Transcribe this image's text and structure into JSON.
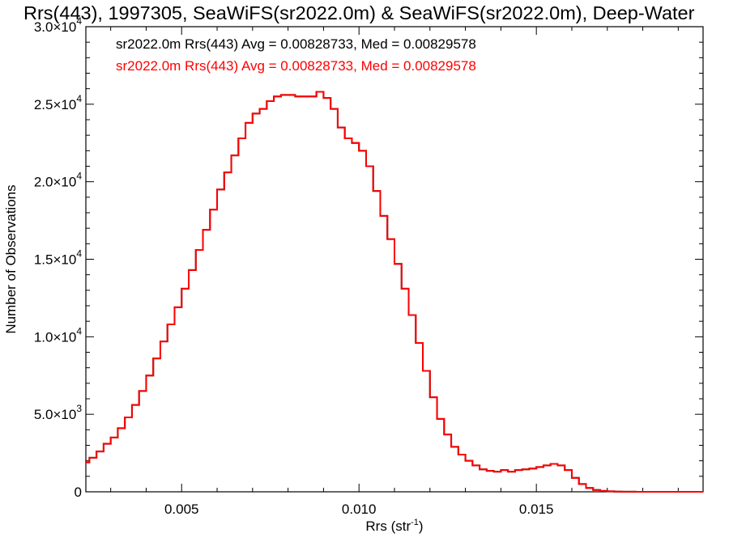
{
  "chart_data": {
    "type": "line",
    "title": "Rrs(443), 1997305, SeaWiFS(sr2022.0m) & SeaWiFS(sr2022.0m), Deep-Water",
    "xlabel": "Rrs (str",
    "xlabel_sup": "-1",
    "xlabel_close": ")",
    "ylabel": "Number of Observations",
    "xlim": [
      0.0023,
      0.0197
    ],
    "ylim": [
      0,
      30000
    ],
    "xticks": [
      {
        "value": 0.005,
        "label": "0.005"
      },
      {
        "value": 0.01,
        "label": "0.010"
      },
      {
        "value": 0.015,
        "label": "0.015"
      }
    ],
    "yticks": [
      {
        "value": 0,
        "mant": "0",
        "exp": ""
      },
      {
        "value": 5000,
        "mant": "5.0×10",
        "exp": "3"
      },
      {
        "value": 10000,
        "mant": "1.0×10",
        "exp": "4"
      },
      {
        "value": 15000,
        "mant": "1.5×10",
        "exp": "4"
      },
      {
        "value": 20000,
        "mant": "2.0×10",
        "exp": "4"
      },
      {
        "value": 25000,
        "mant": "2.5×10",
        "exp": "4"
      },
      {
        "value": 30000,
        "mant": "3.0×10",
        "exp": "4"
      }
    ],
    "grid": false,
    "legend_position": "top-left",
    "series": [
      {
        "name": "sr2022.0m Rrs(443) Avg = 0.00828733, Med = 0.00829578",
        "color": "#000000",
        "x": [
          0.0023,
          0.0025,
          0.0027,
          0.0029,
          0.0031,
          0.0033,
          0.0035,
          0.0037,
          0.0039,
          0.0041,
          0.0043,
          0.0045,
          0.0047,
          0.0049,
          0.0051,
          0.0053,
          0.0055,
          0.0057,
          0.0059,
          0.0061,
          0.0063,
          0.0065,
          0.0067,
          0.0069,
          0.0071,
          0.0073,
          0.0075,
          0.0077,
          0.0079,
          0.0081,
          0.0083,
          0.0085,
          0.0087,
          0.0089,
          0.0091,
          0.0093,
          0.0095,
          0.0097,
          0.0099,
          0.0101,
          0.0103,
          0.0105,
          0.0107,
          0.0109,
          0.0111,
          0.0113,
          0.0115,
          0.0117,
          0.0119,
          0.0121,
          0.0123,
          0.0125,
          0.0127,
          0.0129,
          0.0131,
          0.0133,
          0.0135,
          0.0137,
          0.0139,
          0.0141,
          0.0143,
          0.0145,
          0.0147,
          0.0149,
          0.0151,
          0.0153,
          0.0155,
          0.0157,
          0.0159,
          0.0161,
          0.0163,
          0.0165,
          0.0167,
          0.0169,
          0.0171,
          0.0173,
          0.0175,
          0.0177,
          0.0179,
          0.0181,
          0.0183,
          0.0185,
          0.0187,
          0.0189,
          0.0191,
          0.0193,
          0.0195,
          0.0197
        ],
        "values": [
          1900,
          2200,
          2600,
          3100,
          3500,
          4100,
          4800,
          5600,
          6500,
          7500,
          8600,
          9700,
          10800,
          11900,
          13100,
          14300,
          15600,
          16900,
          18200,
          19500,
          20600,
          21700,
          22800,
          23800,
          24400,
          24700,
          25200,
          25500,
          25600,
          25600,
          25500,
          25500,
          25500,
          25800,
          25400,
          24700,
          23500,
          22800,
          22500,
          22000,
          21000,
          19400,
          17800,
          16300,
          14700,
          13100,
          11400,
          9600,
          7800,
          6100,
          4700,
          3700,
          2900,
          2400,
          2000,
          1700,
          1450,
          1350,
          1300,
          1400,
          1300,
          1400,
          1450,
          1500,
          1600,
          1700,
          1800,
          1700,
          1400,
          900,
          500,
          250,
          120,
          60,
          30,
          15,
          8,
          5,
          3,
          2,
          1,
          1,
          1,
          1,
          1,
          1,
          1,
          1
        ]
      },
      {
        "name": "sr2022.0m Rrs(443) Avg = 0.00828733, Med = 0.00829578",
        "color": "#ff0000",
        "x": [
          0.0023,
          0.0025,
          0.0027,
          0.0029,
          0.0031,
          0.0033,
          0.0035,
          0.0037,
          0.0039,
          0.0041,
          0.0043,
          0.0045,
          0.0047,
          0.0049,
          0.0051,
          0.0053,
          0.0055,
          0.0057,
          0.0059,
          0.0061,
          0.0063,
          0.0065,
          0.0067,
          0.0069,
          0.0071,
          0.0073,
          0.0075,
          0.0077,
          0.0079,
          0.0081,
          0.0083,
          0.0085,
          0.0087,
          0.0089,
          0.0091,
          0.0093,
          0.0095,
          0.0097,
          0.0099,
          0.0101,
          0.0103,
          0.0105,
          0.0107,
          0.0109,
          0.0111,
          0.0113,
          0.0115,
          0.0117,
          0.0119,
          0.0121,
          0.0123,
          0.0125,
          0.0127,
          0.0129,
          0.0131,
          0.0133,
          0.0135,
          0.0137,
          0.0139,
          0.0141,
          0.0143,
          0.0145,
          0.0147,
          0.0149,
          0.0151,
          0.0153,
          0.0155,
          0.0157,
          0.0159,
          0.0161,
          0.0163,
          0.0165,
          0.0167,
          0.0169,
          0.0171,
          0.0173,
          0.0175,
          0.0177,
          0.0179,
          0.0181,
          0.0183,
          0.0185,
          0.0187,
          0.0189,
          0.0191,
          0.0193,
          0.0195,
          0.0197
        ],
        "values": [
          1900,
          2200,
          2600,
          3100,
          3500,
          4100,
          4800,
          5600,
          6500,
          7500,
          8600,
          9700,
          10800,
          11900,
          13100,
          14300,
          15600,
          16900,
          18200,
          19500,
          20600,
          21700,
          22800,
          23800,
          24400,
          24700,
          25200,
          25500,
          25600,
          25600,
          25500,
          25500,
          25500,
          25800,
          25400,
          24700,
          23500,
          22800,
          22500,
          22000,
          21000,
          19400,
          17800,
          16300,
          14700,
          13100,
          11400,
          9600,
          7800,
          6100,
          4700,
          3700,
          2900,
          2400,
          2000,
          1700,
          1450,
          1350,
          1300,
          1400,
          1300,
          1400,
          1450,
          1500,
          1600,
          1700,
          1800,
          1700,
          1400,
          900,
          500,
          250,
          120,
          60,
          30,
          15,
          8,
          5,
          3,
          2,
          1,
          1,
          1,
          1,
          1,
          1,
          1,
          1
        ]
      }
    ]
  }
}
